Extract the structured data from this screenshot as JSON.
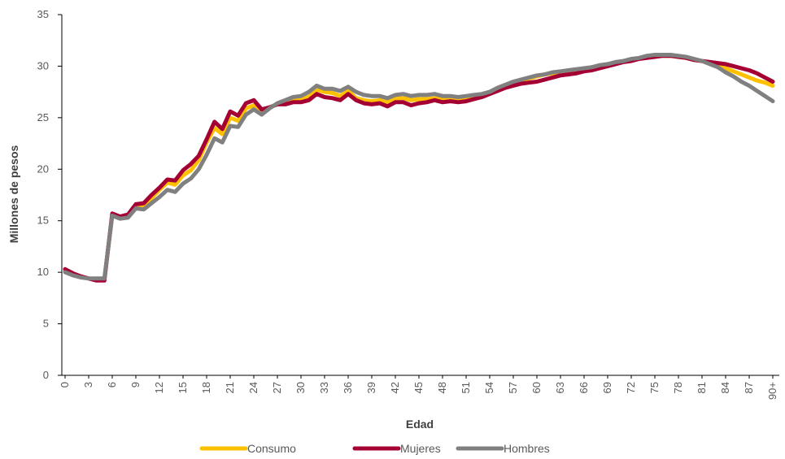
{
  "chart_data": {
    "type": "line",
    "xlabel": "Edad",
    "ylabel": "Millones de pesos",
    "ylim": [
      0,
      35
    ],
    "yticks": [
      0,
      5,
      10,
      15,
      20,
      25,
      30,
      35
    ],
    "x_tick_labels": [
      "0",
      "3",
      "6",
      "9",
      "12",
      "15",
      "18",
      "21",
      "24",
      "27",
      "30",
      "33",
      "36",
      "39",
      "42",
      "45",
      "48",
      "51",
      "54",
      "57",
      "60",
      "63",
      "66",
      "69",
      "72",
      "75",
      "78",
      "81",
      "84",
      "87",
      "90+"
    ],
    "x": [
      0,
      1,
      2,
      3,
      4,
      5,
      6,
      7,
      8,
      9,
      10,
      11,
      12,
      13,
      14,
      15,
      16,
      17,
      18,
      19,
      20,
      21,
      22,
      23,
      24,
      25,
      26,
      27,
      28,
      29,
      30,
      31,
      32,
      33,
      34,
      35,
      36,
      37,
      38,
      39,
      40,
      41,
      42,
      43,
      44,
      45,
      46,
      47,
      48,
      49,
      50,
      51,
      52,
      53,
      54,
      55,
      56,
      57,
      58,
      59,
      60,
      61,
      62,
      63,
      64,
      65,
      66,
      67,
      68,
      69,
      70,
      71,
      72,
      73,
      74,
      75,
      76,
      77,
      78,
      79,
      80,
      81,
      82,
      83,
      84,
      85,
      86,
      87,
      88,
      89,
      90
    ],
    "grid": false,
    "legend_position": "bottom",
    "series": [
      {
        "name": "Consumo",
        "color": "#FFC000",
        "values": [
          10.1,
          9.8,
          9.6,
          9.4,
          9.3,
          9.3,
          15.6,
          15.3,
          15.5,
          16.4,
          16.4,
          17.2,
          18.0,
          18.7,
          18.5,
          19.4,
          19.9,
          20.9,
          22.6,
          24.0,
          23.4,
          25.0,
          24.7,
          25.9,
          26.2,
          25.7,
          26.0,
          26.3,
          26.4,
          26.7,
          26.9,
          27.0,
          27.7,
          27.5,
          27.4,
          27.1,
          27.6,
          26.9,
          26.7,
          26.6,
          26.7,
          26.5,
          26.9,
          26.9,
          26.7,
          26.8,
          26.8,
          26.9,
          26.8,
          26.8,
          26.8,
          26.9,
          27.0,
          27.2,
          27.5,
          27.9,
          28.2,
          28.4,
          28.6,
          28.8,
          29.0,
          29.2,
          29.3,
          29.4,
          29.5,
          29.6,
          29.7,
          29.9,
          30.0,
          30.2,
          30.3,
          30.5,
          30.6,
          30.8,
          30.9,
          31.0,
          31.0,
          31.0,
          30.9,
          30.8,
          30.6,
          30.5,
          30.3,
          30.1,
          29.8,
          29.5,
          29.2,
          28.9,
          28.6,
          28.4,
          28.1
        ]
      },
      {
        "name": "Mujeres",
        "color": "#A50034",
        "values": [
          10.3,
          9.9,
          9.6,
          9.4,
          9.2,
          9.2,
          15.7,
          15.4,
          15.6,
          16.6,
          16.7,
          17.5,
          18.2,
          19.0,
          18.9,
          19.9,
          20.5,
          21.3,
          22.9,
          24.6,
          23.9,
          25.6,
          25.2,
          26.4,
          26.7,
          25.8,
          26.0,
          26.3,
          26.3,
          26.5,
          26.5,
          26.7,
          27.3,
          27.0,
          26.9,
          26.7,
          27.3,
          26.7,
          26.4,
          26.3,
          26.4,
          26.1,
          26.5,
          26.5,
          26.2,
          26.4,
          26.5,
          26.7,
          26.5,
          26.6,
          26.5,
          26.6,
          26.8,
          27.0,
          27.3,
          27.6,
          27.9,
          28.1,
          28.3,
          28.4,
          28.5,
          28.7,
          28.9,
          29.1,
          29.2,
          29.3,
          29.5,
          29.6,
          29.8,
          30.0,
          30.2,
          30.4,
          30.5,
          30.7,
          30.8,
          30.9,
          31.0,
          31.0,
          30.9,
          30.8,
          30.6,
          30.5,
          30.4,
          30.3,
          30.2,
          30.0,
          29.8,
          29.6,
          29.3,
          28.9,
          28.5
        ]
      },
      {
        "name": "Hombres",
        "color": "#808080",
        "values": [
          10.0,
          9.7,
          9.5,
          9.4,
          9.4,
          9.4,
          15.5,
          15.2,
          15.3,
          16.2,
          16.1,
          16.7,
          17.3,
          18.0,
          17.8,
          18.6,
          19.1,
          20.0,
          21.4,
          23.0,
          22.6,
          24.2,
          24.1,
          25.3,
          25.8,
          25.3,
          25.9,
          26.4,
          26.7,
          27.0,
          27.1,
          27.5,
          28.1,
          27.8,
          27.8,
          27.6,
          28.0,
          27.5,
          27.2,
          27.1,
          27.1,
          26.9,
          27.2,
          27.3,
          27.1,
          27.2,
          27.2,
          27.3,
          27.1,
          27.1,
          27.0,
          27.1,
          27.2,
          27.3,
          27.5,
          27.9,
          28.2,
          28.5,
          28.7,
          28.9,
          29.1,
          29.2,
          29.4,
          29.5,
          29.6,
          29.7,
          29.8,
          29.9,
          30.1,
          30.2,
          30.4,
          30.5,
          30.7,
          30.8,
          31.0,
          31.1,
          31.1,
          31.1,
          31.0,
          30.9,
          30.7,
          30.5,
          30.2,
          29.9,
          29.4,
          29.0,
          28.5,
          28.1,
          27.6,
          27.1,
          26.6
        ]
      }
    ]
  }
}
